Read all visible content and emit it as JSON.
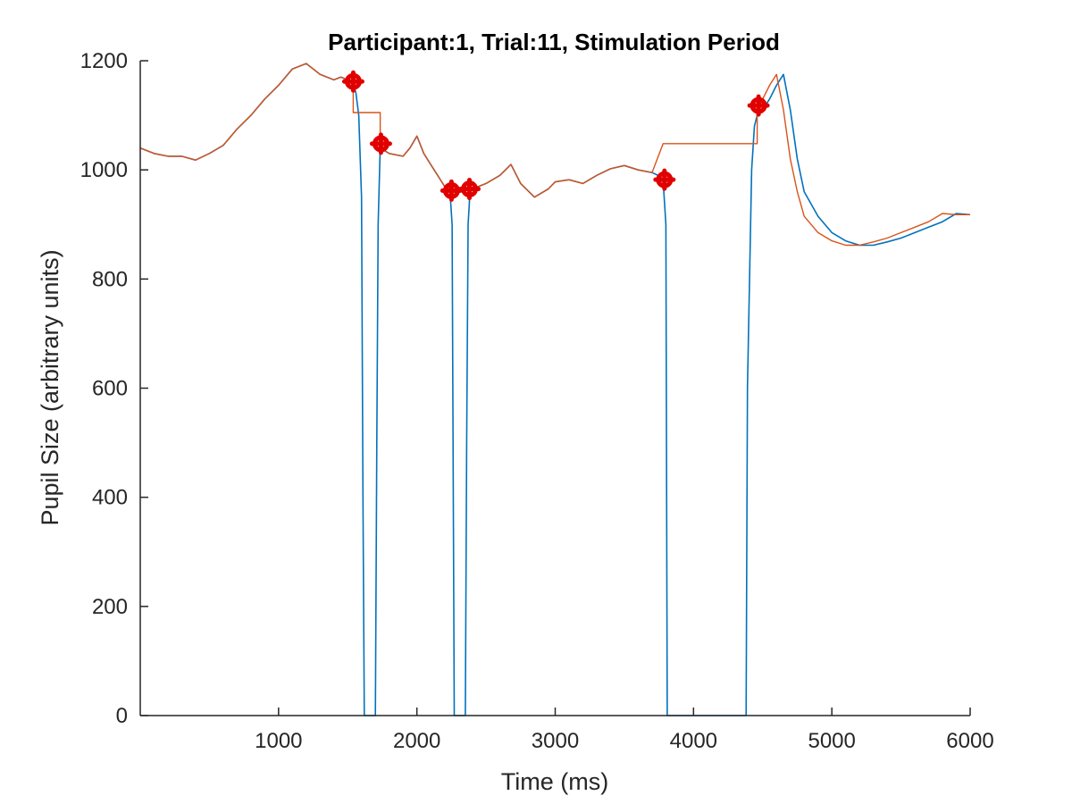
{
  "chart_data": {
    "type": "line",
    "title": "Participant:1, Trial:11, Stimulation Period",
    "xlabel": "Time (ms)",
    "ylabel": "Pupil Size (arbitrary units)",
    "xlim": [
      0,
      6000
    ],
    "ylim": [
      0,
      1200
    ],
    "xticks": [
      1000,
      2000,
      3000,
      4000,
      5000,
      6000
    ],
    "yticks": [
      0,
      200,
      400,
      600,
      800,
      1000,
      1200
    ],
    "colors": {
      "raw": "#0072BD",
      "interpolated": "#D95319",
      "markers": "#E00000",
      "axis": "#262626"
    },
    "series": [
      {
        "key": "raw",
        "x": [
          0,
          100,
          200,
          300,
          400,
          500,
          600,
          700,
          800,
          900,
          1000,
          1100,
          1200,
          1300,
          1400,
          1450,
          1500,
          1540,
          1560,
          1580,
          1600,
          1610,
          1620,
          1700,
          1710,
          1720,
          1735,
          1800,
          1900,
          1950,
          2000,
          2050,
          2100,
          2150,
          2200,
          2240,
          2255,
          2270,
          2350,
          2360,
          2370,
          2385,
          2450,
          2500,
          2600,
          2680,
          2750,
          2850,
          2950,
          3000,
          3100,
          3200,
          3300,
          3400,
          3500,
          3600,
          3700,
          3760,
          3780,
          3800,
          3810,
          4380,
          4390,
          4420,
          4440,
          4460,
          4500,
          4550,
          4600,
          4650,
          4700,
          4750,
          4800,
          4900,
          5000,
          5100,
          5200,
          5300,
          5400,
          5500,
          5600,
          5700,
          5800,
          5900,
          6000
        ],
        "y": [
          1040,
          1030,
          1025,
          1025,
          1018,
          1030,
          1045,
          1075,
          1100,
          1130,
          1155,
          1185,
          1195,
          1175,
          1165,
          1170,
          1165,
          1160,
          1140,
          1100,
          950,
          400,
          0,
          0,
          500,
          900,
          1040,
          1030,
          1025,
          1040,
          1062,
          1030,
          1010,
          990,
          970,
          958,
          900,
          0,
          0,
          500,
          900,
          965,
          970,
          975,
          990,
          1010,
          975,
          950,
          965,
          978,
          982,
          975,
          990,
          1002,
          1008,
          1000,
          995,
          988,
          980,
          900,
          0,
          0,
          600,
          1000,
          1080,
          1100,
          1110,
          1130,
          1155,
          1175,
          1110,
          1020,
          960,
          915,
          885,
          870,
          862,
          862,
          868,
          875,
          885,
          895,
          905,
          920,
          918
        ]
      },
      {
        "key": "interpolated",
        "x": [
          0,
          100,
          200,
          300,
          400,
          500,
          600,
          700,
          800,
          900,
          1000,
          1100,
          1200,
          1300,
          1400,
          1450,
          1500,
          1540,
          1540,
          1735,
          1735,
          1800,
          1900,
          1950,
          2000,
          2050,
          2100,
          2150,
          2200,
          2255,
          2385,
          2450,
          2500,
          2600,
          2680,
          2750,
          2850,
          2950,
          3000,
          3100,
          3200,
          3300,
          3400,
          3500,
          3600,
          3700,
          3780,
          3780,
          4460,
          4460,
          4500,
          4550,
          4600,
          4650,
          4700,
          4750,
          4800,
          4900,
          5000,
          5100,
          5200,
          5300,
          5400,
          5500,
          5600,
          5700,
          5800,
          5900,
          6000
        ],
        "y": [
          1040,
          1030,
          1025,
          1025,
          1018,
          1030,
          1045,
          1075,
          1100,
          1130,
          1155,
          1185,
          1195,
          1175,
          1165,
          1170,
          1165,
          1160,
          1105,
          1105,
          1040,
          1030,
          1025,
          1040,
          1062,
          1030,
          1010,
          990,
          970,
          965,
          965,
          970,
          975,
          990,
          1010,
          975,
          950,
          965,
          978,
          982,
          975,
          990,
          1002,
          1008,
          1000,
          995,
          1048,
          1048,
          1048,
          1110,
          1130,
          1155,
          1175,
          1110,
          1020,
          960,
          915,
          885,
          870,
          862,
          862,
          868,
          875,
          885,
          895,
          905,
          920,
          918,
          918
        ]
      }
    ],
    "markers": [
      {
        "x": 1540,
        "y": 1162
      },
      {
        "x": 1740,
        "y": 1048
      },
      {
        "x": 2250,
        "y": 962
      },
      {
        "x": 2380,
        "y": 965
      },
      {
        "x": 3790,
        "y": 982
      },
      {
        "x": 4470,
        "y": 1118
      }
    ]
  }
}
